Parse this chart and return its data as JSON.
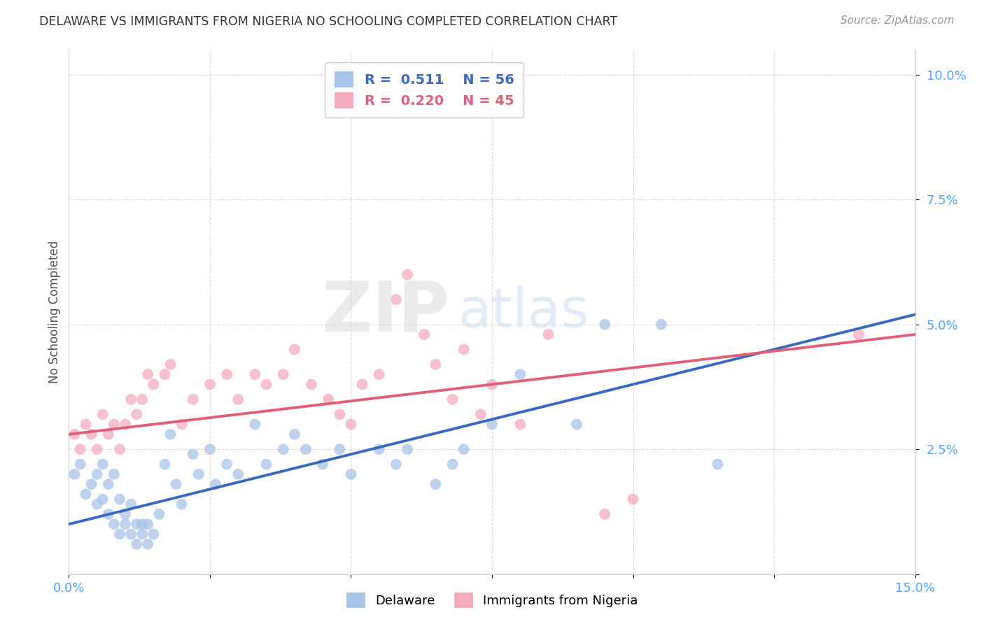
{
  "title": "DELAWARE VS IMMIGRANTS FROM NIGERIA NO SCHOOLING COMPLETED CORRELATION CHART",
  "source": "Source: ZipAtlas.com",
  "ylabel": "No Schooling Completed",
  "xlim": [
    0.0,
    0.15
  ],
  "ylim": [
    0.0,
    0.105
  ],
  "delaware_r": "0.511",
  "delaware_n": "56",
  "nigeria_r": "0.220",
  "nigeria_n": "45",
  "delaware_color": "#a8c4e8",
  "nigeria_color": "#f5abbe",
  "delaware_line_color": "#3a6abf",
  "nigeria_line_color": "#e0607a",
  "background_color": "#ffffff",
  "grid_color": "#cccccc",
  "watermark_zip": "ZIP",
  "watermark_atlas": "atlas",
  "delaware_x": [
    0.001,
    0.002,
    0.003,
    0.004,
    0.005,
    0.005,
    0.006,
    0.006,
    0.007,
    0.007,
    0.008,
    0.008,
    0.009,
    0.009,
    0.01,
    0.01,
    0.011,
    0.011,
    0.012,
    0.012,
    0.013,
    0.013,
    0.014,
    0.014,
    0.015,
    0.016,
    0.017,
    0.018,
    0.019,
    0.02,
    0.022,
    0.023,
    0.025,
    0.026,
    0.028,
    0.03,
    0.033,
    0.035,
    0.038,
    0.04,
    0.042,
    0.045,
    0.048,
    0.05,
    0.055,
    0.058,
    0.06,
    0.065,
    0.068,
    0.07,
    0.075,
    0.08,
    0.09,
    0.095,
    0.105,
    0.115
  ],
  "delaware_y": [
    0.02,
    0.022,
    0.016,
    0.018,
    0.02,
    0.014,
    0.022,
    0.015,
    0.018,
    0.012,
    0.02,
    0.01,
    0.015,
    0.008,
    0.012,
    0.01,
    0.014,
    0.008,
    0.01,
    0.006,
    0.008,
    0.01,
    0.006,
    0.01,
    0.008,
    0.012,
    0.022,
    0.028,
    0.018,
    0.014,
    0.024,
    0.02,
    0.025,
    0.018,
    0.022,
    0.02,
    0.03,
    0.022,
    0.025,
    0.028,
    0.025,
    0.022,
    0.025,
    0.02,
    0.025,
    0.022,
    0.025,
    0.018,
    0.022,
    0.025,
    0.03,
    0.04,
    0.03,
    0.05,
    0.05,
    0.022
  ],
  "nigeria_x": [
    0.001,
    0.002,
    0.003,
    0.004,
    0.005,
    0.006,
    0.007,
    0.008,
    0.009,
    0.01,
    0.011,
    0.012,
    0.013,
    0.014,
    0.015,
    0.017,
    0.018,
    0.02,
    0.022,
    0.025,
    0.028,
    0.03,
    0.033,
    0.035,
    0.038,
    0.04,
    0.043,
    0.046,
    0.048,
    0.05,
    0.052,
    0.055,
    0.058,
    0.06,
    0.063,
    0.065,
    0.068,
    0.07,
    0.073,
    0.075,
    0.08,
    0.085,
    0.095,
    0.1,
    0.14
  ],
  "nigeria_y": [
    0.028,
    0.025,
    0.03,
    0.028,
    0.025,
    0.032,
    0.028,
    0.03,
    0.025,
    0.03,
    0.035,
    0.032,
    0.035,
    0.04,
    0.038,
    0.04,
    0.042,
    0.03,
    0.035,
    0.038,
    0.04,
    0.035,
    0.04,
    0.038,
    0.04,
    0.045,
    0.038,
    0.035,
    0.032,
    0.03,
    0.038,
    0.04,
    0.055,
    0.06,
    0.048,
    0.042,
    0.035,
    0.045,
    0.032,
    0.038,
    0.03,
    0.048,
    0.012,
    0.015,
    0.048
  ]
}
